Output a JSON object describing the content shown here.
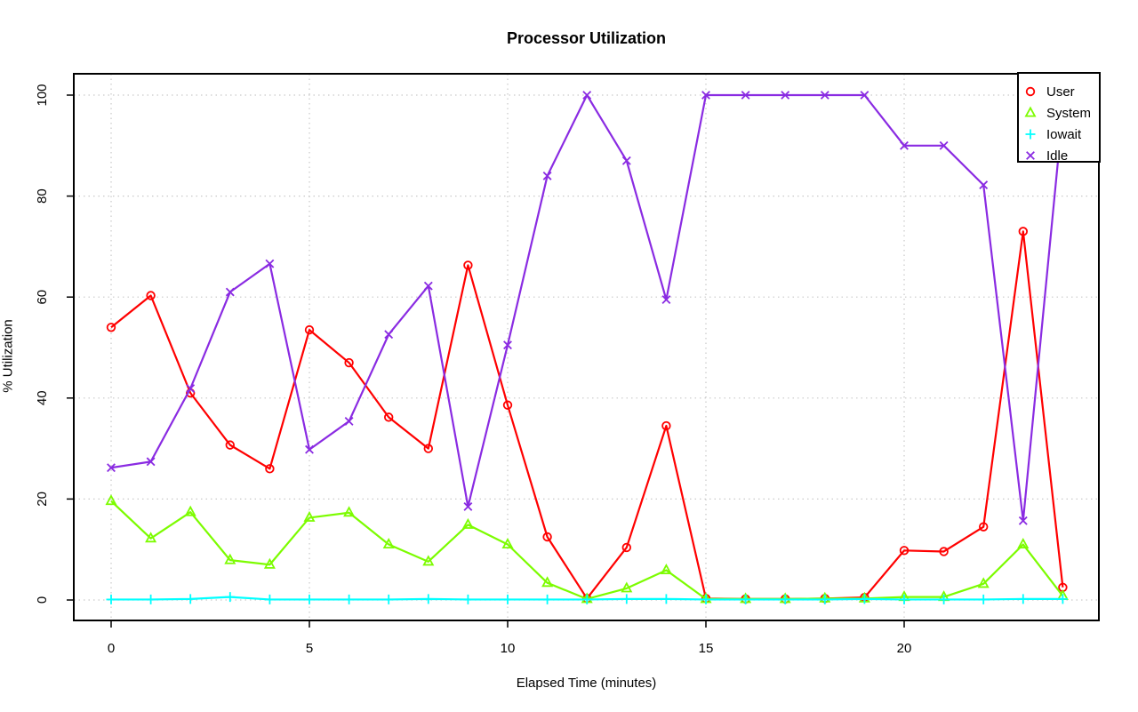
{
  "chart_data": {
    "type": "line",
    "title": "Processor Utilization",
    "xlabel": "Elapsed Time (minutes)",
    "ylabel": "% Utilization",
    "x": [
      0,
      1,
      2,
      3,
      4,
      5,
      6,
      7,
      8,
      9,
      10,
      11,
      12,
      13,
      14,
      15,
      16,
      17,
      18,
      19,
      20,
      21,
      22,
      23,
      24
    ],
    "xlim": [
      0,
      24
    ],
    "ylim": [
      0,
      100
    ],
    "x_ticks": [
      0,
      5,
      10,
      15,
      20
    ],
    "y_ticks": [
      0,
      20,
      40,
      60,
      80,
      100
    ],
    "grid": true,
    "grid_style": "dotted",
    "legend_position": "topright",
    "colors": {
      "axis": "#000000",
      "grid": "#c9c9c9",
      "background": "#ffffff"
    },
    "series": [
      {
        "name": "User",
        "color": "#ff0000",
        "marker": "circle",
        "values": [
          54,
          60.3,
          41,
          30.7,
          26,
          53.5,
          47,
          36.2,
          30,
          66.3,
          38.6,
          12.5,
          0.3,
          10.4,
          34.5,
          0.3,
          0.2,
          0.2,
          0.3,
          0.5,
          9.8,
          9.6,
          14.5,
          73,
          2.5
        ]
      },
      {
        "name": "System",
        "color": "#7cfc00",
        "marker": "triangle",
        "values": [
          19.6,
          12.2,
          17.4,
          7.9,
          7,
          16.3,
          17.3,
          11,
          7.6,
          14.9,
          11,
          3.4,
          0.2,
          2.3,
          5.9,
          0.2,
          0.2,
          0.2,
          0.3,
          0.3,
          0.6,
          0.6,
          3.2,
          11,
          0.8
        ]
      },
      {
        "name": "Iowait",
        "color": "#00ffff",
        "marker": "plus",
        "values": [
          0.1,
          0.1,
          0.2,
          0.6,
          0.1,
          0.1,
          0.1,
          0.1,
          0.2,
          0.1,
          0.1,
          0.1,
          0.1,
          0.2,
          0.2,
          0.1,
          0.1,
          0.1,
          0.1,
          0.2,
          0.1,
          0.1,
          0.1,
          0.2,
          0.2
        ]
      },
      {
        "name": "Idle",
        "color": "#8a2be2",
        "marker": "x",
        "values": [
          26.2,
          27.4,
          41.9,
          61,
          66.6,
          29.8,
          35.4,
          52.6,
          62.2,
          18.5,
          50.5,
          84,
          100,
          87,
          59.5,
          100,
          100,
          100,
          100,
          100,
          90,
          90,
          82.2,
          15.7,
          96.8
        ]
      }
    ]
  }
}
